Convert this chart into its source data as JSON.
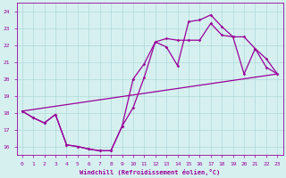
{
  "xlabel": "Windchill (Refroidissement éolien,°C)",
  "bg_color": "#d6f0f0",
  "line_color": "#990099",
  "grid_color": "#b0d8d8",
  "xlim": [
    -0.5,
    23.5
  ],
  "ylim": [
    15.5,
    24.5
  ],
  "xticks": [
    0,
    1,
    2,
    3,
    4,
    5,
    6,
    7,
    8,
    9,
    10,
    11,
    12,
    13,
    14,
    15,
    16,
    17,
    18,
    19,
    20,
    21,
    22,
    23
  ],
  "yticks": [
    16,
    17,
    18,
    19,
    20,
    21,
    22,
    23,
    24
  ],
  "curve1_x": [
    0,
    1,
    2,
    3,
    4,
    5,
    6,
    7,
    8,
    9,
    10,
    11,
    12,
    13,
    14,
    15,
    16,
    17,
    18,
    19,
    20,
    21,
    22,
    23
  ],
  "curve1_y": [
    18.1,
    17.7,
    17.4,
    17.9,
    16.1,
    16.0,
    15.85,
    15.75,
    15.75,
    17.2,
    18.3,
    20.1,
    22.2,
    21.9,
    20.8,
    23.4,
    23.5,
    23.8,
    23.1,
    22.5,
    20.3,
    21.8,
    20.7,
    20.3
  ],
  "curve2_x": [
    0,
    1,
    2,
    3,
    4,
    5,
    6,
    7,
    8,
    9,
    10,
    11,
    12,
    13,
    14,
    15,
    16,
    17,
    18,
    19,
    20,
    21,
    22,
    23
  ],
  "curve2_y": [
    18.1,
    17.7,
    17.4,
    17.9,
    16.1,
    16.0,
    15.85,
    15.75,
    15.75,
    17.2,
    20.0,
    20.9,
    22.2,
    22.4,
    22.3,
    22.3,
    22.3,
    23.3,
    22.6,
    22.5,
    22.5,
    21.8,
    21.2,
    20.3
  ],
  "curve3_x": [
    0,
    23
  ],
  "curve3_y": [
    18.1,
    20.3
  ],
  "marker_size": 1.8,
  "line_width": 0.9
}
